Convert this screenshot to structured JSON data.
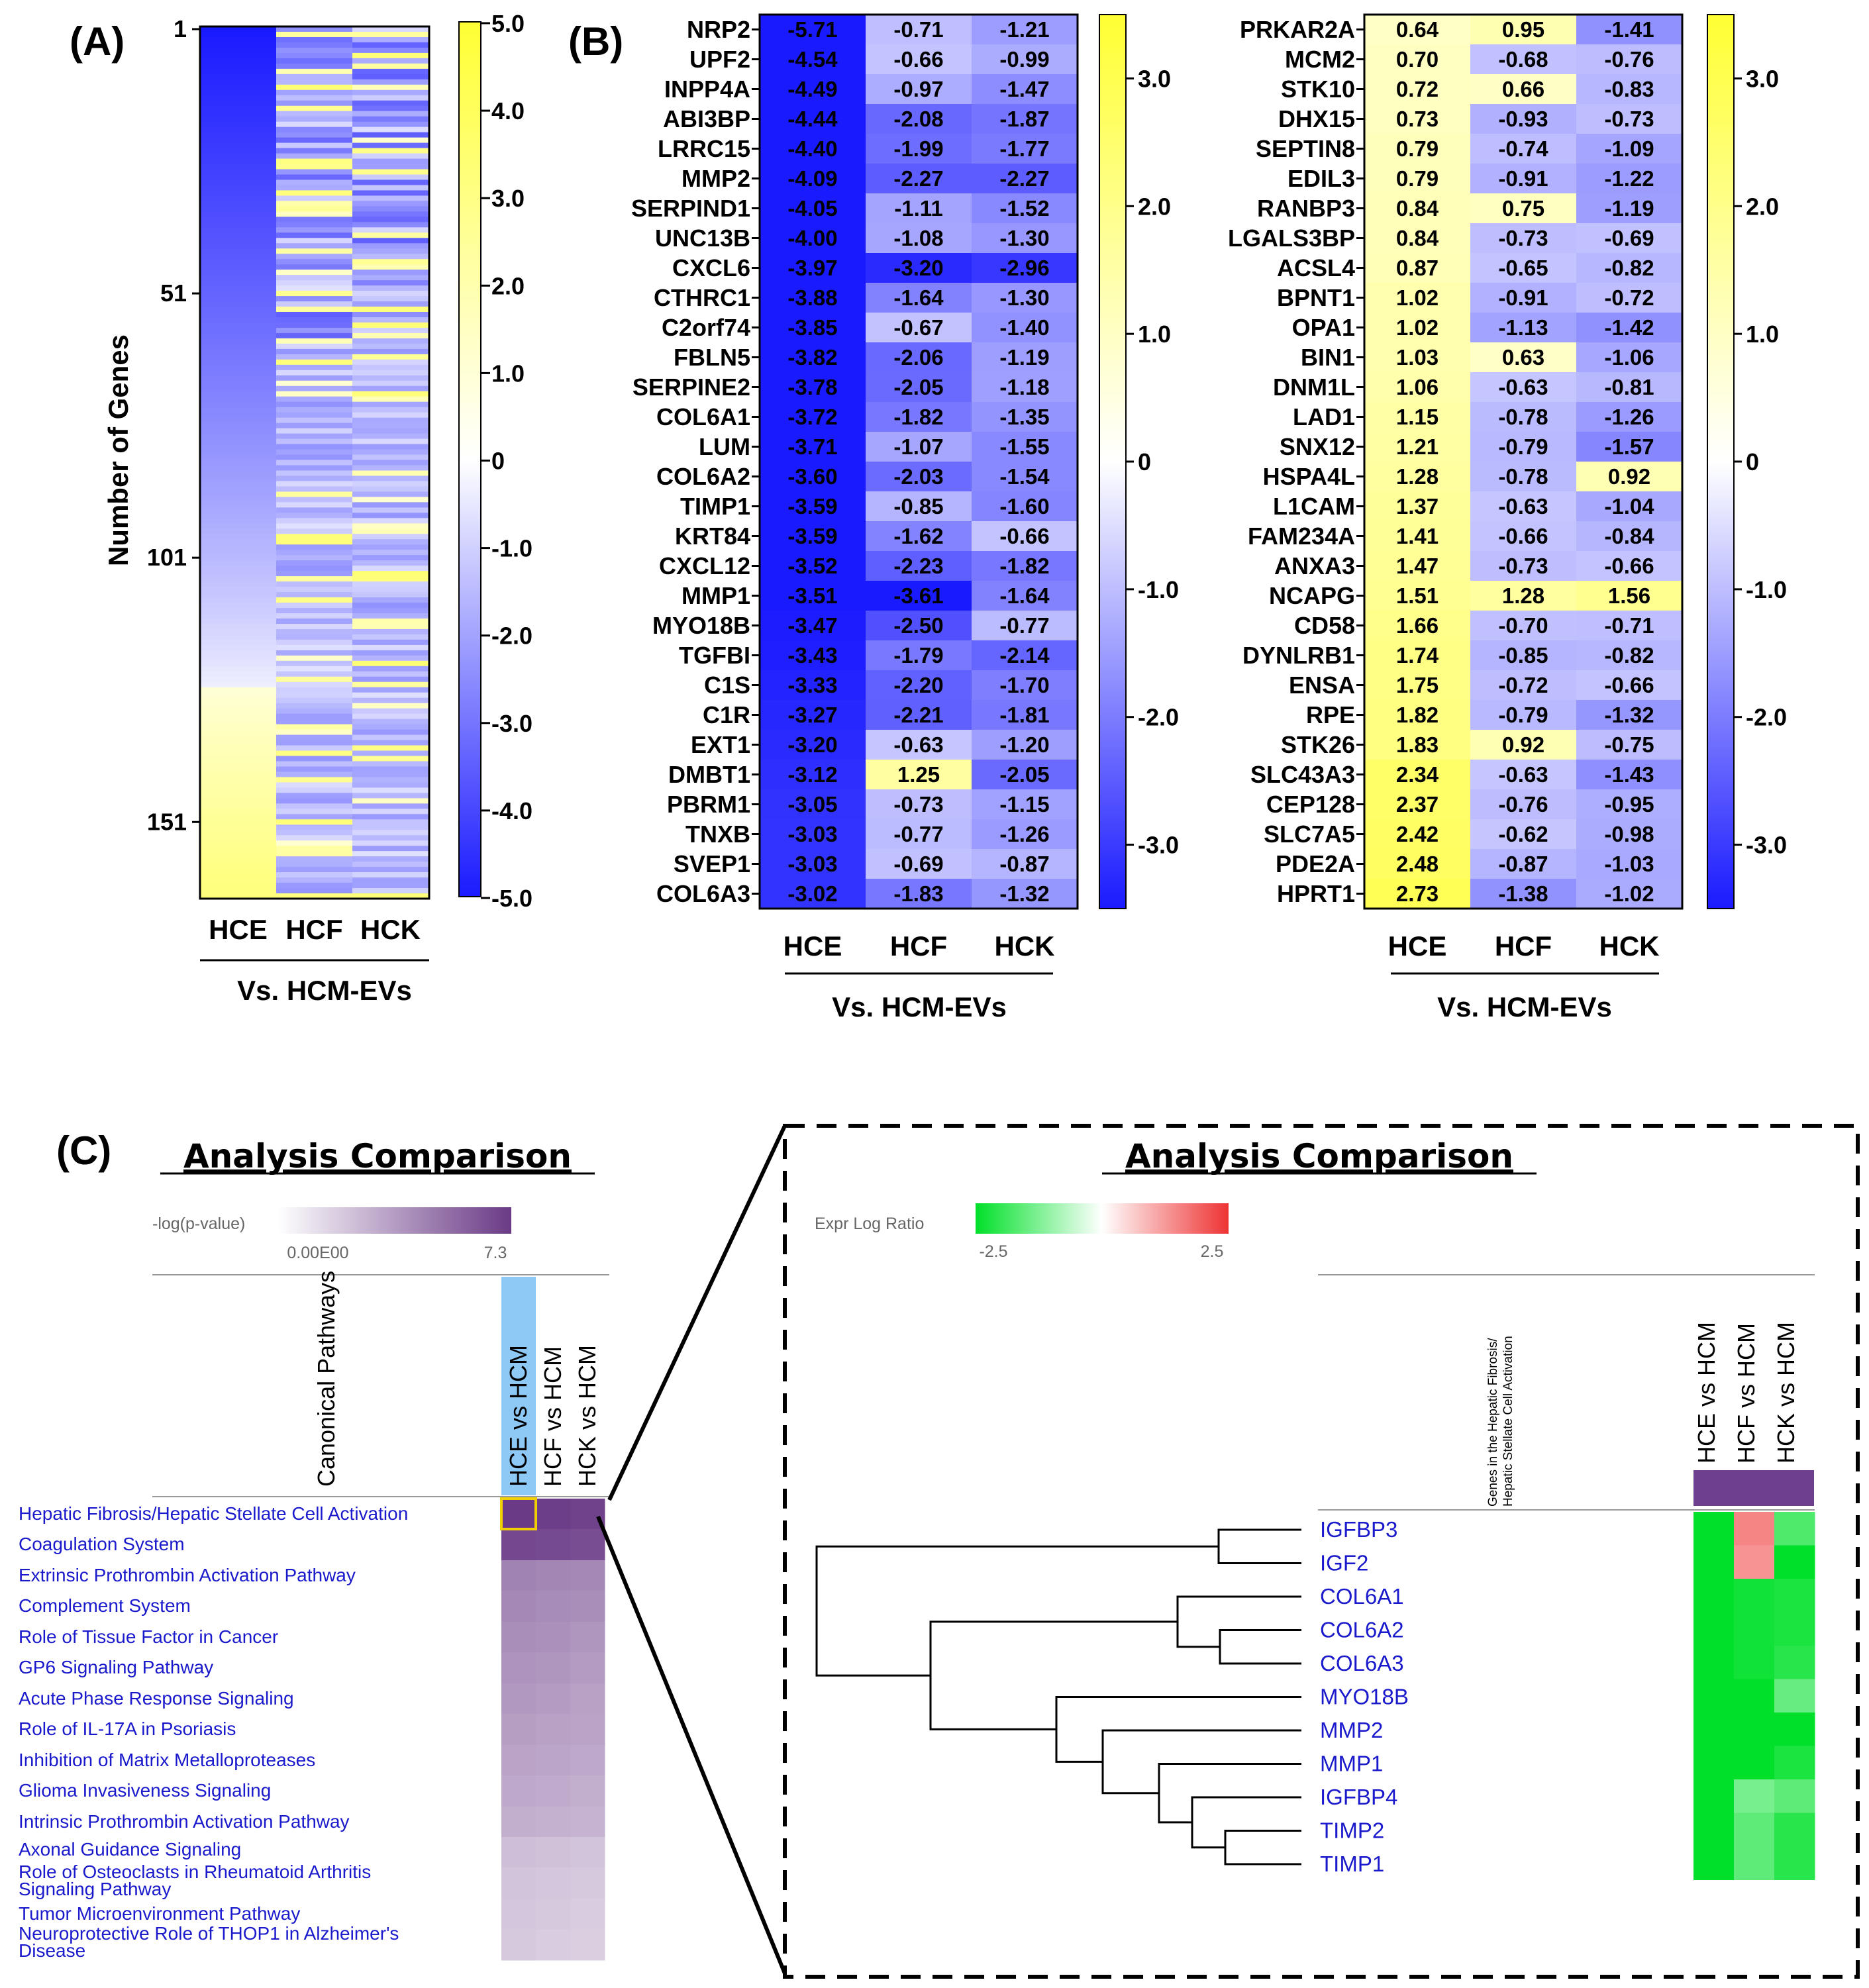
{
  "colors": {
    "blue": "#1a1aff",
    "white": "#ffffff",
    "yellow": "#ffff33",
    "purple_dark": "#6a3a86",
    "purple_light": "#ffffff",
    "highlight_col": "#8ec8f4",
    "ipa_green": "#00e02a",
    "ipa_red": "#ee3333",
    "link": "#1a1acc"
  },
  "panelA": {
    "letter": "(A)",
    "ylabel": "Number of Genes",
    "yticks": [
      "1",
      "51",
      "101",
      "151"
    ],
    "columns": [
      "HCE",
      "HCF",
      "HCK"
    ],
    "xlabel": "Vs.  HCM-EVs",
    "cbar_labels": [
      "5.0",
      "4.0",
      "3.0",
      "2.0",
      "1.0",
      "0",
      "-1.0",
      "-2.0",
      "-3.0",
      "-4.0",
      "-5.0"
    ],
    "n_genes": 165
  },
  "panelB": {
    "letter": "(B)",
    "columns": [
      "HCE",
      "HCF",
      "HCK"
    ],
    "xlabel": "Vs.  HCM-EVs",
    "cbar_labels": [
      "3.0",
      "2.0",
      "1.0",
      "0",
      "-1.0",
      "-2.0",
      "-3.0"
    ]
  },
  "panelC": {
    "letter": "(C)",
    "left_title": "Analysis Comparison",
    "legend_label": "-log(p-value)",
    "legend_min": "0.00E00",
    "legend_max": "7.3",
    "column_header": "Canonical Pathways",
    "comparisons": [
      "HCE vs HCM",
      "HCF vs HCM",
      "HCK vs HCM"
    ],
    "pathways": [
      "Hepatic Fibrosis/Hepatic Stellate Cell Activation",
      "Coagulation System",
      "Extrinsic Prothrombin Activation Pathway",
      "Complement System",
      "Role of Tissue Factor in Cancer",
      "GP6 Signaling Pathway",
      "Acute Phase Response Signaling",
      "Role of IL-17A in Psoriasis",
      "Inhibition of Matrix Metalloproteases",
      "Glioma Invasiveness Signaling",
      "Intrinsic Prothrombin Activation Pathway",
      "Axonal Guidance Signaling",
      "Role of Osteoclasts in Rheumatoid Arthritis Signaling Pathway",
      "Tumor Microenvironment Pathway",
      "Neuroprotective Role of THOP1 in Alzheimer's Disease"
    ],
    "right_title": "Analysis Comparison",
    "expr_label": "Expr Log Ratio",
    "expr_min": "-2.5",
    "expr_max": "2.5",
    "gene_header_line1": "Genes in the Hepatic Fibrosis/",
    "gene_header_line2": "Hepatic Stellate Cell Activation",
    "genes": [
      "IGFBP3",
      "IGF2",
      "COL6A1",
      "COL6A2",
      "COL6A3",
      "MYO18B",
      "MMP2",
      "MMP1",
      "IGFBP4",
      "TIMP2",
      "TIMP1"
    ]
  },
  "chart_data": [
    {
      "type": "heatmap",
      "panel": "A",
      "title": "",
      "ylabel": "Number of Genes",
      "xlabel": "Vs.  HCM-EVs",
      "categories": [
        "HCE",
        "HCF",
        "HCK"
      ],
      "yticks": [
        1,
        51,
        101,
        151
      ],
      "ylim": [
        1,
        165
      ],
      "color_range": [
        -5.0,
        5.0
      ],
      "note": "165 genes sorted by HCE log ratio; HCE ranges from about -5 (top) to about 2.7 (bottom), changing sign near gene 126"
    },
    {
      "type": "heatmap",
      "panel": "B-left",
      "categories": [
        "HCE",
        "HCF",
        "HCK"
      ],
      "xlabel": "Vs.  HCM-EVs",
      "color_range": [
        -3.5,
        3.5
      ],
      "genes": [
        "NRP2",
        "UPF2",
        "INPP4A",
        "ABI3BP",
        "LRRC15",
        "MMP2",
        "SERPIND1",
        "UNC13B",
        "CXCL6",
        "CTHRC1",
        "C2orf74",
        "FBLN5",
        "SERPINE2",
        "COL6A1",
        "LUM",
        "COL6A2",
        "TIMP1",
        "KRT84",
        "CXCL12",
        "MMP1",
        "MYO18B",
        "TGFBI",
        "C1S",
        "C1R",
        "EXT1",
        "DMBT1",
        "PBRM1",
        "TNXB",
        "SVEP1",
        "COL6A3"
      ],
      "values": [
        [
          "-5.71",
          "-0.71",
          "-1.21"
        ],
        [
          "-4.54",
          "-0.66",
          "-0.99"
        ],
        [
          "-4.49",
          "-0.97",
          "-1.47"
        ],
        [
          "-4.44",
          "-2.08",
          "-1.87"
        ],
        [
          "-4.40",
          "-1.99",
          "-1.77"
        ],
        [
          "-4.09",
          "-2.27",
          "-2.27"
        ],
        [
          "-4.05",
          "-1.11",
          "-1.52"
        ],
        [
          "-4.00",
          "-1.08",
          "-1.30"
        ],
        [
          "-3.97",
          "-3.20",
          "-2.96"
        ],
        [
          "-3.88",
          "-1.64",
          "-1.30"
        ],
        [
          "-3.85",
          "-0.67",
          "-1.40"
        ],
        [
          "-3.82",
          "-2.06",
          "-1.19"
        ],
        [
          "-3.78",
          "-2.05",
          "-1.18"
        ],
        [
          "-3.72",
          "-1.82",
          "-1.35"
        ],
        [
          "-3.71",
          "-1.07",
          "-1.55"
        ],
        [
          "-3.60",
          "-2.03",
          "-1.54"
        ],
        [
          "-3.59",
          "-0.85",
          "-1.60"
        ],
        [
          "-3.59",
          "-1.62",
          "-0.66"
        ],
        [
          "-3.52",
          "-2.23",
          "-1.82"
        ],
        [
          "-3.51",
          "-3.61",
          "-1.64"
        ],
        [
          "-3.47",
          "-2.50",
          "-0.77"
        ],
        [
          "-3.43",
          "-1.79",
          "-2.14"
        ],
        [
          "-3.33",
          "-2.20",
          "-1.70"
        ],
        [
          "-3.27",
          "-2.21",
          "-1.81"
        ],
        [
          "-3.20",
          "-0.63",
          "-1.20"
        ],
        [
          "-3.12",
          "1.25",
          "-2.05"
        ],
        [
          "-3.05",
          "-0.73",
          "-1.15"
        ],
        [
          "-3.03",
          "-0.77",
          "-1.26"
        ],
        [
          "-3.03",
          "-0.69",
          "-0.87"
        ],
        [
          "-3.02",
          "-1.83",
          "-1.32"
        ]
      ]
    },
    {
      "type": "heatmap",
      "panel": "B-right",
      "categories": [
        "HCE",
        "HCF",
        "HCK"
      ],
      "xlabel": "Vs.  HCM-EVs",
      "color_range": [
        -3.5,
        3.5
      ],
      "genes": [
        "PRKAR2A",
        "MCM2",
        "STK10",
        "DHX15",
        "SEPTIN8",
        "EDIL3",
        "RANBP3",
        "LGALS3BP",
        "ACSL4",
        "BPNT1",
        "OPA1",
        "BIN1",
        "DNM1L",
        "LAD1",
        "SNX12",
        "HSPA4L",
        "L1CAM",
        "FAM234A",
        "ANXA3",
        "NCAPG",
        "CD58",
        "DYNLRB1",
        "ENSA",
        "RPE",
        "STK26",
        "SLC43A3",
        "CEP128",
        "SLC7A5",
        "PDE2A",
        "HPRT1"
      ],
      "values": [
        [
          "0.64",
          "0.95",
          "-1.41"
        ],
        [
          "0.70",
          "-0.68",
          "-0.76"
        ],
        [
          "0.72",
          "0.66",
          "-0.83"
        ],
        [
          "0.73",
          "-0.93",
          "-0.73"
        ],
        [
          "0.79",
          "-0.74",
          "-1.09"
        ],
        [
          "0.79",
          "-0.91",
          "-1.22"
        ],
        [
          "0.84",
          "0.75",
          "-1.19"
        ],
        [
          "0.84",
          "-0.73",
          "-0.69"
        ],
        [
          "0.87",
          "-0.65",
          "-0.82"
        ],
        [
          "1.02",
          "-0.91",
          "-0.72"
        ],
        [
          "1.02",
          "-1.13",
          "-1.42"
        ],
        [
          "1.03",
          "0.63",
          "-1.06"
        ],
        [
          "1.06",
          "-0.63",
          "-0.81"
        ],
        [
          "1.15",
          "-0.78",
          "-1.26"
        ],
        [
          "1.21",
          "-0.79",
          "-1.57"
        ],
        [
          "1.28",
          "-0.78",
          "0.92"
        ],
        [
          "1.37",
          "-0.63",
          "-1.04"
        ],
        [
          "1.41",
          "-0.66",
          "-0.84"
        ],
        [
          "1.47",
          "-0.73",
          "-0.66"
        ],
        [
          "1.51",
          "1.28",
          "1.56"
        ],
        [
          "1.66",
          "-0.70",
          "-0.71"
        ],
        [
          "1.74",
          "-0.85",
          "-0.82"
        ],
        [
          "1.75",
          "-0.72",
          "-0.66"
        ],
        [
          "1.82",
          "-0.79",
          "-1.32"
        ],
        [
          "1.83",
          "0.92",
          "-0.75"
        ],
        [
          "2.34",
          "-0.63",
          "-1.43"
        ],
        [
          "2.37",
          "-0.76",
          "-0.95"
        ],
        [
          "2.42",
          "-0.62",
          "-0.98"
        ],
        [
          "2.48",
          "-0.87",
          "-1.03"
        ],
        [
          "2.73",
          "-1.38",
          "-1.02"
        ]
      ]
    },
    {
      "type": "heatmap",
      "panel": "C-left",
      "title": "Analysis Comparison",
      "legend": "-log(p-value)",
      "color_range": [
        0.0,
        7.3
      ],
      "categories": [
        "HCE vs HCM",
        "HCF vs HCM",
        "HCK vs HCM"
      ],
      "values_estimated": [
        [
          7.3,
          7.2,
          7.0
        ],
        [
          6.8,
          6.7,
          6.6
        ],
        [
          4.6,
          4.5,
          4.4
        ],
        [
          4.4,
          4.3,
          4.2
        ],
        [
          4.2,
          4.1,
          3.9
        ],
        [
          4.0,
          3.9,
          3.7
        ],
        [
          3.8,
          3.7,
          3.5
        ],
        [
          3.6,
          3.5,
          3.4
        ],
        [
          3.4,
          3.3,
          3.2
        ],
        [
          3.2,
          3.1,
          3.0
        ],
        [
          3.0,
          2.9,
          2.8
        ],
        [
          2.4,
          2.3,
          2.2
        ],
        [
          2.2,
          2.1,
          2.0
        ],
        [
          2.1,
          2.0,
          1.9
        ],
        [
          2.0,
          1.9,
          1.8
        ]
      ]
    },
    {
      "type": "heatmap",
      "panel": "C-right",
      "title": "Analysis Comparison",
      "legend": "Expr Log Ratio",
      "color_range": [
        -2.5,
        2.5
      ],
      "categories": [
        "HCE vs HCM",
        "HCF vs HCM",
        "HCK vs HCM"
      ],
      "values_estimated": [
        [
          -2.5,
          1.2,
          -1.2
        ],
        [
          -2.5,
          1.0,
          -2.5
        ],
        [
          -2.5,
          -2.2,
          -2.0
        ],
        [
          -2.5,
          -2.2,
          -2.0
        ],
        [
          -2.5,
          -2.2,
          -1.8
        ],
        [
          -2.5,
          -2.5,
          -0.9
        ],
        [
          -2.5,
          -2.5,
          -2.5
        ],
        [
          -2.5,
          -2.5,
          -2.0
        ],
        [
          -2.5,
          -0.7,
          -1.0
        ],
        [
          -2.5,
          -1.0,
          -1.8
        ],
        [
          -2.5,
          -1.0,
          -1.8
        ]
      ]
    }
  ]
}
